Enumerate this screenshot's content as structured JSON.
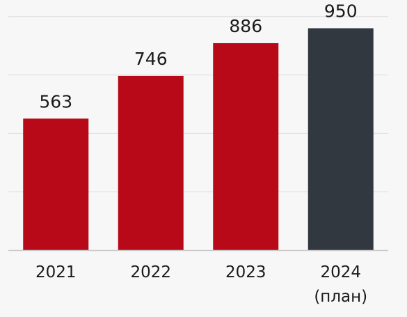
{
  "chart_data": {
    "type": "bar",
    "title": "",
    "xlabel": "",
    "ylabel": "",
    "ylim": [
      0,
      1050
    ],
    "grid": true,
    "categories": [
      {
        "label": "2021",
        "sublabel": ""
      },
      {
        "label": "2022",
        "sublabel": ""
      },
      {
        "label": "2023",
        "sublabel": ""
      },
      {
        "label": "2024",
        "sublabel": "(план)"
      }
    ],
    "values": [
      563,
      746,
      886,
      950
    ],
    "value_labels": [
      "563",
      "746",
      "886",
      "950"
    ],
    "colors": {
      "actual": "#b80918",
      "plan": "#323840",
      "grid": "#dcdcdc",
      "baseline": "#c8c8c8"
    },
    "bar_colors": [
      "actual",
      "actual",
      "actual",
      "plan"
    ]
  }
}
